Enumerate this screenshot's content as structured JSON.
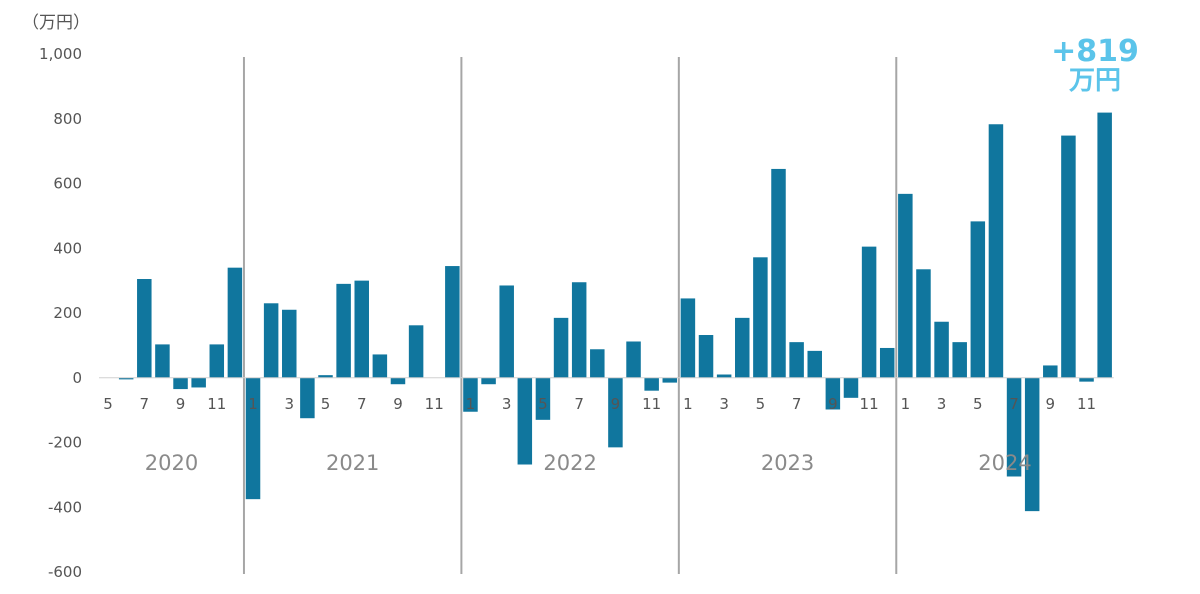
{
  "chart_data": {
    "type": "bar",
    "ylabel": "（万円）",
    "ylim": [
      -600,
      1000
    ],
    "yticks": [
      1000,
      800,
      600,
      400,
      200,
      0,
      -200,
      -400,
      -600
    ],
    "ytick_labels": [
      "1,000",
      "800",
      "600",
      "400",
      "200",
      "0",
      "-200",
      "-400",
      "-600"
    ],
    "years": [
      "2020",
      "2021",
      "2022",
      "2023",
      "2024"
    ],
    "series": [
      {
        "x": [
          "2020-05",
          "2020-06",
          "2020-07",
          "2020-08",
          "2020-09",
          "2020-10",
          "2020-11",
          "2020-12",
          "2021-01",
          "2021-02",
          "2021-03",
          "2021-04",
          "2021-05",
          "2021-06",
          "2021-07",
          "2021-08",
          "2021-09",
          "2021-10",
          "2021-11",
          "2021-12",
          "2022-01",
          "2022-02",
          "2022-03",
          "2022-04",
          "2022-05",
          "2022-06",
          "2022-07",
          "2022-08",
          "2022-09",
          "2022-10",
          "2022-11",
          "2022-12",
          "2023-01",
          "2023-02",
          "2023-03",
          "2023-04",
          "2023-05",
          "2023-06",
          "2023-07",
          "2023-08",
          "2023-09",
          "2023-10",
          "2023-11",
          "2023-12",
          "2024-01",
          "2024-02",
          "2024-03",
          "2024-04",
          "2024-05",
          "2024-06",
          "2024-07",
          "2024-08",
          "2024-09",
          "2024-10",
          "2024-11",
          "2024-12"
        ],
        "values": [
          0,
          -5,
          305,
          103,
          -35,
          -30,
          103,
          340,
          -375,
          230,
          210,
          -125,
          8,
          290,
          300,
          72,
          -20,
          162,
          0,
          345,
          -105,
          -20,
          285,
          -268,
          -130,
          185,
          295,
          88,
          -215,
          112,
          -40,
          -15,
          245,
          132,
          10,
          185,
          372,
          645,
          110,
          83,
          -98,
          -62,
          405,
          92,
          568,
          335,
          173,
          110,
          483,
          783,
          -305,
          -412,
          38,
          748,
          -12,
          819
        ],
        "month_labels": [
          "5",
          "",
          "7",
          "",
          "9",
          "",
          "11",
          "",
          "1",
          "",
          "3",
          "",
          "5",
          "",
          "7",
          "",
          "9",
          "",
          "11",
          "",
          "1",
          "",
          "3",
          "",
          "5",
          "",
          "7",
          "",
          "9",
          "",
          "11",
          "",
          "1",
          "",
          "3",
          "",
          "5",
          "",
          "7",
          "",
          "9",
          "",
          "11",
          "",
          "1",
          "",
          "3",
          "",
          "5",
          "",
          "7",
          "",
          "9",
          "",
          "11",
          ""
        ]
      }
    ],
    "annotation": {
      "value": "+819",
      "unit": "万円"
    },
    "colors": {
      "bar": "#10769e",
      "annotation": "#5bc4ea",
      "axis_text": "#555555",
      "year_text": "#8a8a8a",
      "separator": "#a6a6a6"
    },
    "grid": false
  }
}
